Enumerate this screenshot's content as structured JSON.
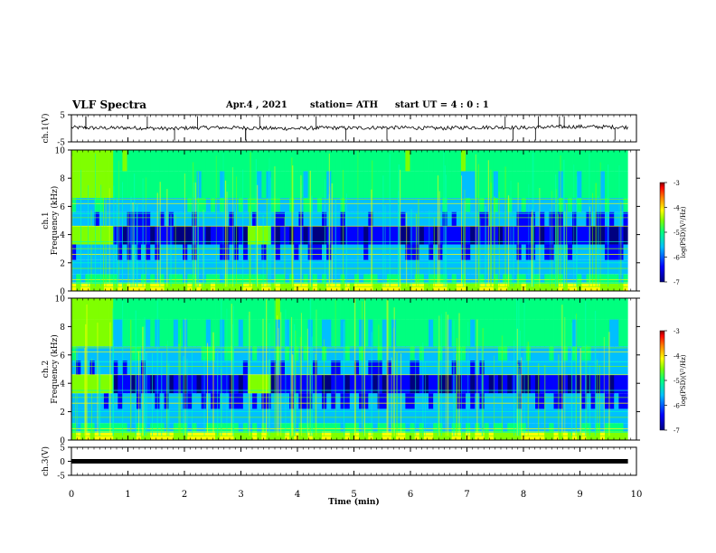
{
  "header": {
    "title": "VLF Spectra",
    "date": "Apr.4 , 2021",
    "station": "station= ATH",
    "start_ut": "start UT =  4 : 0  : 1"
  },
  "chart_data": [
    {
      "type": "line",
      "panel": "ch1-waveform",
      "ylabel": "ch.1(V)",
      "ylim": [
        -5,
        5
      ],
      "yticks": [
        "5",
        "-5"
      ],
      "x": [
        0,
        0.5,
        1.0,
        1.5,
        1.8,
        2.0,
        2.5,
        3.0,
        3.5,
        4.0,
        4.5,
        5.0,
        5.5,
        6.0,
        6.5,
        7.0,
        7.5,
        8.0,
        8.5,
        9.0,
        9.5,
        9.85
      ],
      "y": [
        0.3,
        0.1,
        0.2,
        0.0,
        -0.2,
        0.1,
        0.3,
        0.2,
        0.0,
        -0.1,
        0.2,
        0.1,
        0.3,
        0.2,
        0.0,
        0.3,
        0.4,
        0.2,
        0.5,
        0.6,
        0.5,
        0.4
      ]
    },
    {
      "type": "heatmap",
      "panel": "ch1-spectrogram",
      "ylabel": "Frequency (kHz)",
      "channel": "ch.1",
      "ylim": [
        0,
        10
      ],
      "yticks": [
        "0",
        "2",
        "4",
        "6",
        "8",
        "10"
      ],
      "colorbar": {
        "label": "log(PSD)(V²/Hz)",
        "range": [
          -7,
          -3
        ],
        "ticks": [
          "-3",
          "-4",
          "-5",
          "-6",
          "-7"
        ]
      }
    },
    {
      "type": "heatmap",
      "panel": "ch2-spectrogram",
      "ylabel": "Frequency (kHz)",
      "channel": "ch.2",
      "ylim": [
        0,
        10
      ],
      "yticks": [
        "0",
        "2",
        "4",
        "6",
        "8",
        "10"
      ],
      "colorbar": {
        "label": "log(PSD)(V²/Hz)",
        "range": [
          -7,
          -3
        ],
        "ticks": [
          "-3",
          "-4",
          "-5",
          "-6",
          "-7"
        ]
      }
    },
    {
      "type": "line",
      "panel": "ch3-waveform",
      "ylabel": "ch.3(V)",
      "ylim": [
        -5,
        5
      ],
      "yticks": [
        "5",
        "0",
        "-5"
      ],
      "x": [
        0,
        9.85
      ],
      "y": [
        0,
        0
      ]
    }
  ],
  "xaxis": {
    "label": "Time (min)",
    "range": [
      0,
      10
    ],
    "ticks": [
      "0",
      "1",
      "2",
      "3",
      "4",
      "5",
      "6",
      "7",
      "8",
      "9",
      "10"
    ],
    "data_end": 9.85
  },
  "colors": {
    "colormap": [
      "#00007f",
      "#0000ff",
      "#00bfff",
      "#00ff7f",
      "#7fff00",
      "#ffff00",
      "#ff7f00",
      "#ff0000",
      "#7f0000"
    ],
    "trace": "#000000"
  }
}
